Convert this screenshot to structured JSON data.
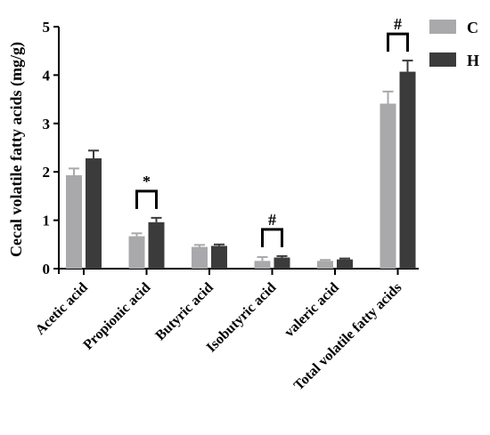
{
  "chart_data": {
    "type": "bar",
    "ylabel": "Cecal volatile fatty acids (mg/g)",
    "xlabel": "",
    "ylim": [
      0,
      5
    ],
    "yticks": [
      "0",
      "1",
      "2",
      "3",
      "4",
      "5"
    ],
    "categories": [
      "Acetic acid",
      "Propionic acid",
      "Butyric acid",
      "Isobutyric acid",
      "valeric acid",
      "Total volatile fatty acids"
    ],
    "series": [
      {
        "name": "C",
        "color": "#a9a9ab",
        "values": [
          1.93,
          0.67,
          0.45,
          0.16,
          0.16,
          3.41
        ],
        "errors": [
          0.14,
          0.06,
          0.04,
          0.08,
          0.02,
          0.25
        ]
      },
      {
        "name": "H",
        "color": "#3b3b3b",
        "values": [
          2.28,
          0.96,
          0.47,
          0.23,
          0.19,
          4.07
        ],
        "errors": [
          0.16,
          0.09,
          0.03,
          0.03,
          0.02,
          0.23
        ]
      }
    ],
    "significance": [
      {
        "category": "Propionic acid",
        "label": "*"
      },
      {
        "category": "Isobutyric acid",
        "label": "#"
      },
      {
        "category": "Total volatile fatty acids",
        "label": "#"
      }
    ],
    "legend_position": "top-right",
    "grid": false
  }
}
